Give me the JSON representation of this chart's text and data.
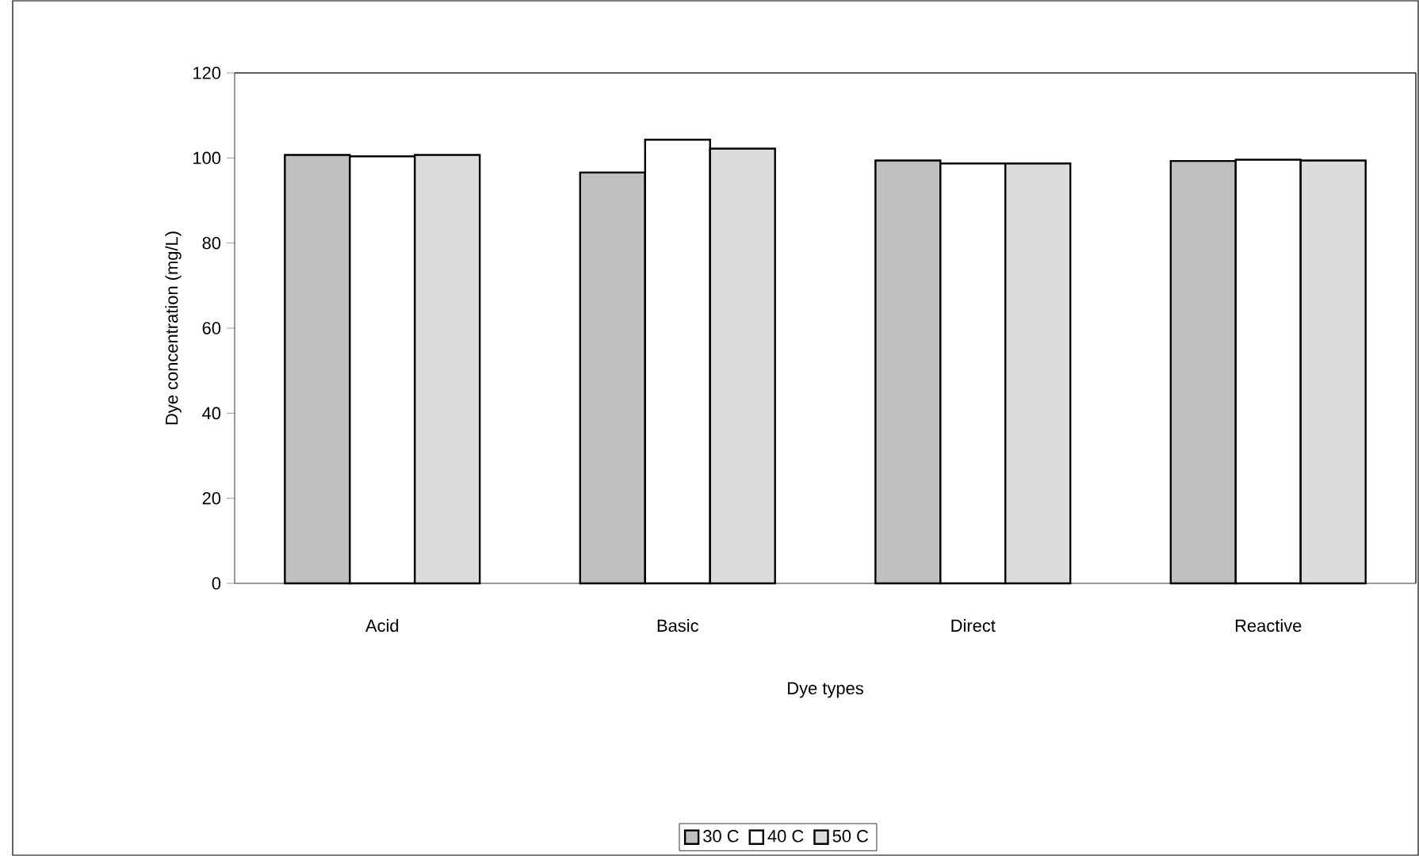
{
  "chart_data": {
    "type": "bar",
    "xlabel": "Dye types",
    "ylabel": "Dye concentration (mg/L)",
    "categories": [
      "Acid",
      "Basic",
      "Direct",
      "Reactive"
    ],
    "series": [
      {
        "name": "30 C",
        "color": "#c0c0c0",
        "values": [
          100.7,
          96.6,
          99.4,
          99.3
        ]
      },
      {
        "name": "40 C",
        "color": "#ffffff",
        "values": [
          100.4,
          104.3,
          98.7,
          99.6
        ]
      },
      {
        "name": "50 C",
        "color": "#dcdcdc",
        "values": [
          100.7,
          102.2,
          98.7,
          99.4
        ]
      }
    ],
    "ylim": [
      0,
      120
    ],
    "yticks": [
      0,
      20,
      40,
      60,
      80,
      100,
      120
    ],
    "grid": false,
    "legend": "bottom"
  }
}
